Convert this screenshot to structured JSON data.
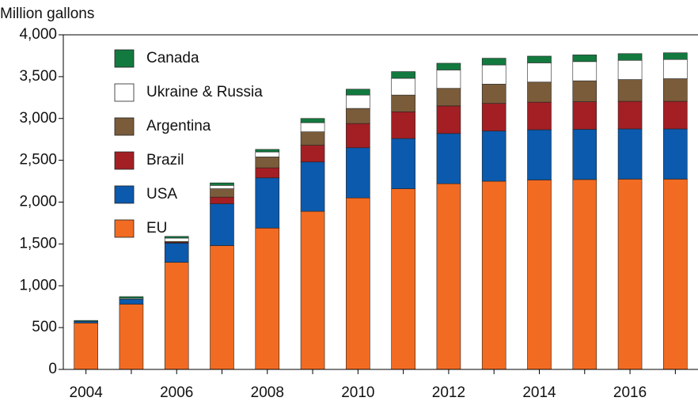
{
  "chart_data": {
    "type": "stacked-bar",
    "y_label": "Million gallons",
    "categories": [
      "2004",
      null,
      "2006",
      null,
      "2008",
      null,
      "2010",
      null,
      "2012",
      null,
      "2014",
      null,
      "2016",
      null
    ],
    "series": [
      {
        "name": "EU",
        "color": "#f26b22",
        "values": [
          555,
          780,
          1280,
          1480,
          1690,
          1890,
          2050,
          2160,
          2220,
          2250,
          2265,
          2270,
          2275,
          2275
        ]
      },
      {
        "name": "USA",
        "color": "#0b5aad",
        "values": [
          20,
          60,
          230,
          500,
          600,
          590,
          600,
          600,
          600,
          600,
          600,
          600,
          600,
          600
        ]
      },
      {
        "name": "Brazil",
        "color": "#a31f24",
        "values": [
          0,
          0,
          10,
          80,
          120,
          200,
          290,
          320,
          330,
          330,
          330,
          330,
          330,
          330
        ]
      },
      {
        "name": "Argentina",
        "color": "#7a5c3a",
        "values": [
          0,
          0,
          10,
          100,
          130,
          160,
          180,
          200,
          210,
          230,
          240,
          250,
          260,
          270
        ]
      },
      {
        "name": "Ukraine & Russia",
        "color": "#ffffff",
        "values": [
          0,
          10,
          40,
          40,
          60,
          110,
          160,
          200,
          220,
          230,
          230,
          230,
          230,
          230
        ]
      },
      {
        "name": "Canada",
        "color": "#137a3f",
        "values": [
          10,
          20,
          20,
          30,
          30,
          50,
          70,
          80,
          80,
          80,
          80,
          80,
          80,
          80
        ]
      }
    ],
    "ylim": [
      0,
      4000
    ],
    "yticks": [
      0,
      500,
      {
        "value": 1000,
        "label": "1,000"
      },
      {
        "value": 1500,
        "label": "1,500"
      },
      {
        "value": 2000,
        "label": "2,000"
      },
      {
        "value": 2500,
        "label": "2,500"
      },
      {
        "value": 3000,
        "label": "3,000"
      },
      {
        "value": 3500,
        "label": "3,500"
      },
      {
        "value": 4000,
        "label": "4,000"
      }
    ]
  }
}
